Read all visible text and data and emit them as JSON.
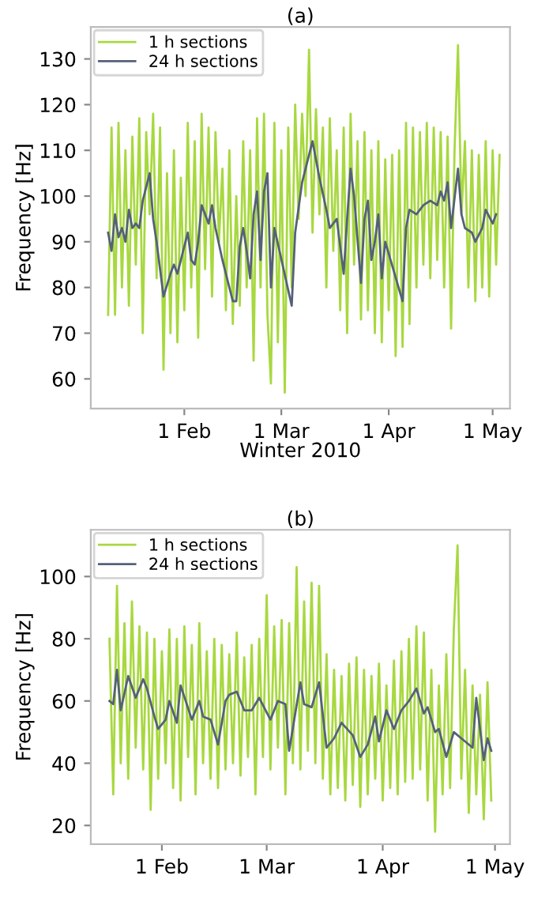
{
  "chart_data": [
    {
      "type": "line",
      "title": "(a)",
      "xlabel": "Winter 2010",
      "ylabel": "Frequency [Hz]",
      "xlim": [
        "2010-01-05",
        "2010-05-06"
      ],
      "ylim": [
        53.5,
        137
      ],
      "xticks": [
        {
          "value": "2010-02-01",
          "label": "1 Feb"
        },
        {
          "value": "2010-03-01",
          "label": "1 Mar"
        },
        {
          "value": "2010-04-01",
          "label": "1 Apr"
        },
        {
          "value": "2010-05-01",
          "label": "1 May"
        }
      ],
      "yticks": [
        60,
        70,
        80,
        90,
        100,
        110,
        120,
        130
      ],
      "grid": false,
      "legend": "top left",
      "line_style": "solid",
      "marker": "none",
      "series": [
        {
          "name": "1 h sections",
          "color": "#a8d840",
          "x": [
            "2010-01-10",
            "2010-01-11",
            "2010-01-12",
            "2010-01-13",
            "2010-01-14",
            "2010-01-15",
            "2010-01-16",
            "2010-01-17",
            "2010-01-18",
            "2010-01-19",
            "2010-01-20",
            "2010-01-21",
            "2010-01-22",
            "2010-01-23",
            "2010-01-24",
            "2010-01-25",
            "2010-01-26",
            "2010-01-27",
            "2010-01-28",
            "2010-01-29",
            "2010-01-30",
            "2010-01-31",
            "2010-02-01",
            "2010-02-02",
            "2010-02-03",
            "2010-02-04",
            "2010-02-05",
            "2010-02-06",
            "2010-02-07",
            "2010-02-08",
            "2010-02-09",
            "2010-02-10",
            "2010-02-11",
            "2010-02-12",
            "2010-02-13",
            "2010-02-14",
            "2010-02-15",
            "2010-02-16",
            "2010-02-17",
            "2010-02-18",
            "2010-02-19",
            "2010-02-20",
            "2010-02-21",
            "2010-02-22",
            "2010-02-23",
            "2010-02-24",
            "2010-02-25",
            "2010-02-26",
            "2010-02-27",
            "2010-02-28",
            "2010-03-01",
            "2010-03-02",
            "2010-03-03",
            "2010-03-04",
            "2010-03-05",
            "2010-03-06",
            "2010-03-07",
            "2010-03-08",
            "2010-03-09",
            "2010-03-10",
            "2010-03-11",
            "2010-03-12",
            "2010-03-13",
            "2010-03-14",
            "2010-03-15",
            "2010-03-16",
            "2010-03-17",
            "2010-03-18",
            "2010-03-19",
            "2010-03-20",
            "2010-03-21",
            "2010-03-22",
            "2010-03-23",
            "2010-03-24",
            "2010-03-25",
            "2010-03-26",
            "2010-03-27",
            "2010-03-28",
            "2010-03-29",
            "2010-03-30",
            "2010-03-31",
            "2010-04-01",
            "2010-04-02",
            "2010-04-03",
            "2010-04-04",
            "2010-04-05",
            "2010-04-06",
            "2010-04-07",
            "2010-04-08",
            "2010-04-09",
            "2010-04-10",
            "2010-04-11",
            "2010-04-12",
            "2010-04-13",
            "2010-04-14",
            "2010-04-15",
            "2010-04-16",
            "2010-04-17",
            "2010-04-18",
            "2010-04-19",
            "2010-04-20",
            "2010-04-21",
            "2010-04-22",
            "2010-04-23",
            "2010-04-24",
            "2010-04-25",
            "2010-04-26",
            "2010-04-27",
            "2010-04-28",
            "2010-04-29",
            "2010-04-30",
            "2010-05-01",
            "2010-05-02",
            "2010-05-03"
          ],
          "values": [
            74,
            115,
            74,
            116,
            80,
            110,
            76,
            113,
            85,
            117,
            70,
            114,
            96,
            118,
            82,
            115,
            62,
            105,
            70,
            110,
            68,
            104,
            75,
            116,
            80,
            112,
            69,
            118,
            84,
            115,
            78,
            114,
            90,
            106,
            75,
            110,
            72,
            100,
            76,
            112,
            80,
            110,
            64,
            117,
            80,
            118,
            74,
            59,
            116,
            68,
            110,
            57,
            115,
            80,
            120,
            95,
            118,
            100,
            132,
            92,
            119,
            96,
            115,
            80,
            117,
            88,
            110,
            75,
            115,
            70,
            118,
            85,
            112,
            73,
            114,
            75,
            110,
            70,
            112,
            68,
            108,
            75,
            109,
            65,
            110,
            67,
            116,
            72,
            115,
            80,
            114,
            85,
            116,
            82,
            115,
            86,
            114,
            80,
            113,
            71,
            110,
            133,
            96,
            112,
            80,
            110,
            77,
            109,
            80,
            112,
            78,
            110,
            85,
            109
          ]
        },
        {
          "name": "24 h sections",
          "color": "#55607a",
          "x": [
            "2010-01-10",
            "2010-01-11",
            "2010-01-12",
            "2010-01-13",
            "2010-01-14",
            "2010-01-15",
            "2010-01-16",
            "2010-01-17",
            "2010-01-18",
            "2010-01-19",
            "2010-01-20",
            "2010-01-22",
            "2010-01-23",
            "2010-01-24",
            "2010-01-26",
            "2010-01-28",
            "2010-01-29",
            "2010-01-30",
            "2010-02-02",
            "2010-02-03",
            "2010-02-04",
            "2010-02-05",
            "2010-02-06",
            "2010-02-08",
            "2010-02-09",
            "2010-02-10",
            "2010-02-12",
            "2010-02-15",
            "2010-02-16",
            "2010-02-17",
            "2010-02-18",
            "2010-02-19",
            "2010-02-20",
            "2010-02-21",
            "2010-02-22",
            "2010-02-23",
            "2010-02-24",
            "2010-02-25",
            "2010-02-26",
            "2010-02-27",
            "2010-03-04",
            "2010-03-05",
            "2010-03-07",
            "2010-03-10",
            "2010-03-11",
            "2010-03-12",
            "2010-03-14",
            "2010-03-15",
            "2010-03-17",
            "2010-03-19",
            "2010-03-20",
            "2010-03-21",
            "2010-03-22",
            "2010-03-24",
            "2010-03-25",
            "2010-03-26",
            "2010-03-27",
            "2010-03-28",
            "2010-03-29",
            "2010-03-30",
            "2010-03-31",
            "2010-04-05",
            "2010-04-06",
            "2010-04-07",
            "2010-04-09",
            "2010-04-11",
            "2010-04-13",
            "2010-04-15",
            "2010-04-16",
            "2010-04-17",
            "2010-04-18",
            "2010-04-19",
            "2010-04-21",
            "2010-04-22",
            "2010-04-23",
            "2010-04-25",
            "2010-04-26",
            "2010-04-28",
            "2010-04-29",
            "2010-05-01",
            "2010-05-02"
          ],
          "values": [
            92,
            88,
            96,
            91,
            93,
            90,
            97,
            93,
            94,
            93,
            99,
            105,
            95,
            90,
            78,
            83,
            85,
            83,
            92,
            86,
            85,
            90,
            98,
            94,
            98,
            93,
            86,
            77,
            77,
            89,
            93,
            88,
            82,
            96,
            101,
            86,
            101,
            105,
            80,
            93,
            76,
            92,
            103,
            112,
            108,
            104,
            97,
            93,
            95,
            83,
            95,
            106,
            100,
            81,
            95,
            99,
            86,
            90,
            96,
            82,
            90,
            77,
            93,
            97,
            96,
            98,
            99,
            98,
            101,
            99,
            103,
            93,
            106,
            96,
            93,
            92,
            90,
            93,
            97,
            94,
            96
          ]
        }
      ]
    },
    {
      "type": "line",
      "title": "(b)",
      "ylabel": "Frequency [Hz]",
      "xlim": [
        "2010-01-13",
        "2010-05-05"
      ],
      "ylim": [
        14,
        115
      ],
      "xticks": [
        {
          "value": "2010-02-01",
          "label": "1 Feb"
        },
        {
          "value": "2010-03-01",
          "label": "1 Mar"
        },
        {
          "value": "2010-04-01",
          "label": "1 Apr"
        },
        {
          "value": "2010-05-01",
          "label": "1 May"
        }
      ],
      "yticks": [
        20,
        40,
        60,
        80,
        100
      ],
      "grid": false,
      "legend": "top left",
      "line_style": "solid",
      "marker": "none",
      "series": [
        {
          "name": "1 h sections",
          "color": "#a8d840",
          "x": [
            "2010-01-18",
            "2010-01-19",
            "2010-01-20",
            "2010-01-21",
            "2010-01-22",
            "2010-01-23",
            "2010-01-24",
            "2010-01-25",
            "2010-01-26",
            "2010-01-27",
            "2010-01-28",
            "2010-01-29",
            "2010-01-30",
            "2010-01-31",
            "2010-02-01",
            "2010-02-02",
            "2010-02-03",
            "2010-02-04",
            "2010-02-05",
            "2010-02-06",
            "2010-02-07",
            "2010-02-08",
            "2010-02-09",
            "2010-02-10",
            "2010-02-11",
            "2010-02-12",
            "2010-02-13",
            "2010-02-14",
            "2010-02-15",
            "2010-02-16",
            "2010-02-17",
            "2010-02-18",
            "2010-02-19",
            "2010-02-20",
            "2010-02-21",
            "2010-02-22",
            "2010-02-23",
            "2010-02-24",
            "2010-02-25",
            "2010-02-26",
            "2010-02-27",
            "2010-02-28",
            "2010-03-01",
            "2010-03-02",
            "2010-03-03",
            "2010-03-04",
            "2010-03-05",
            "2010-03-06",
            "2010-03-07",
            "2010-03-08",
            "2010-03-09",
            "2010-03-10",
            "2010-03-11",
            "2010-03-12",
            "2010-03-13",
            "2010-03-14",
            "2010-03-15",
            "2010-03-16",
            "2010-03-17",
            "2010-03-18",
            "2010-03-19",
            "2010-03-20",
            "2010-03-21",
            "2010-03-22",
            "2010-03-23",
            "2010-03-24",
            "2010-03-25",
            "2010-03-26",
            "2010-03-27",
            "2010-03-28",
            "2010-03-29",
            "2010-03-30",
            "2010-03-31",
            "2010-04-01",
            "2010-04-02",
            "2010-04-03",
            "2010-04-04",
            "2010-04-05",
            "2010-04-06",
            "2010-04-07",
            "2010-04-08",
            "2010-04-09",
            "2010-04-10",
            "2010-04-11",
            "2010-04-12",
            "2010-04-13",
            "2010-04-14",
            "2010-04-15",
            "2010-04-16",
            "2010-04-17",
            "2010-04-18",
            "2010-04-19",
            "2010-04-20",
            "2010-04-21",
            "2010-04-22",
            "2010-04-23",
            "2010-04-24",
            "2010-04-25",
            "2010-04-26",
            "2010-04-27",
            "2010-04-28",
            "2010-04-29",
            "2010-04-30"
          ],
          "values": [
            80,
            30,
            97,
            40,
            85,
            35,
            92,
            45,
            84,
            38,
            82,
            25,
            80,
            35,
            76,
            40,
            83,
            32,
            80,
            28,
            84,
            42,
            78,
            30,
            85,
            40,
            76,
            35,
            80,
            32,
            78,
            38,
            75,
            40,
            82,
            36,
            74,
            42,
            78,
            30,
            80,
            42,
            94,
            38,
            84,
            45,
            86,
            30,
            85,
            40,
            103,
            38,
            92,
            44,
            98,
            40,
            97,
            35,
            75,
            30,
            70,
            32,
            68,
            28,
            72,
            33,
            74,
            26,
            70,
            30,
            68,
            35,
            72,
            28,
            65,
            32,
            73,
            30,
            76,
            34,
            80,
            35,
            84,
            38,
            82,
            28,
            70,
            18,
            65,
            30,
            75,
            32,
            83,
            110,
            35,
            70,
            24,
            65,
            30,
            62,
            22,
            66,
            28
          ]
        },
        {
          "name": "24 h sections",
          "color": "#55607a",
          "x": [
            "2010-01-18",
            "2010-01-19",
            "2010-01-20",
            "2010-01-21",
            "2010-01-23",
            "2010-01-25",
            "2010-01-27",
            "2010-01-28",
            "2010-01-30",
            "2010-01-31",
            "2010-02-02",
            "2010-02-03",
            "2010-02-05",
            "2010-02-06",
            "2010-02-09",
            "2010-02-11",
            "2010-02-12",
            "2010-02-14",
            "2010-02-16",
            "2010-02-18",
            "2010-02-19",
            "2010-02-21",
            "2010-02-23",
            "2010-02-25",
            "2010-02-27",
            "2010-03-02",
            "2010-03-04",
            "2010-03-06",
            "2010-03-07",
            "2010-03-10",
            "2010-03-11",
            "2010-03-13",
            "2010-03-15",
            "2010-03-17",
            "2010-03-19",
            "2010-03-21",
            "2010-03-24",
            "2010-03-26",
            "2010-03-28",
            "2010-03-30",
            "2010-03-31",
            "2010-04-02",
            "2010-04-04",
            "2010-04-06",
            "2010-04-08",
            "2010-04-10",
            "2010-04-12",
            "2010-04-13",
            "2010-04-15",
            "2010-04-16",
            "2010-04-18",
            "2010-04-20",
            "2010-04-22",
            "2010-04-25",
            "2010-04-26",
            "2010-04-28",
            "2010-04-29",
            "2010-04-30"
          ],
          "values": [
            60,
            59,
            70,
            57,
            68,
            61,
            67,
            64,
            55,
            51,
            54,
            60,
            53,
            65,
            54,
            60,
            55,
            54,
            46,
            60,
            62,
            63,
            57,
            57,
            61,
            54,
            60,
            59,
            44,
            66,
            59,
            58,
            66,
            45,
            48,
            53,
            49,
            42,
            46,
            55,
            47,
            57,
            51,
            57,
            60,
            64,
            56,
            58,
            50,
            51,
            42,
            50,
            48,
            45,
            61,
            41,
            48,
            44
          ]
        }
      ]
    }
  ]
}
